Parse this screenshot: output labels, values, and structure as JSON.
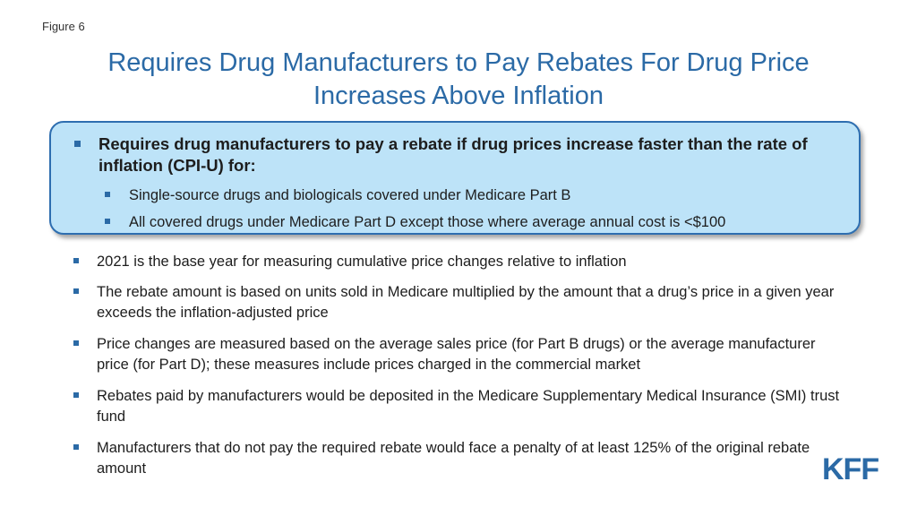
{
  "figure_label": "Figure 6",
  "title_line1": "Requires Drug Manufacturers to Pay Rebates For Drug Price",
  "title_line2": "Increases Above Inflation",
  "highlight": {
    "main": "Requires drug manufacturers to pay a rebate if drug prices increase faster than the rate of inflation (CPI-U) for:",
    "sub": [
      "Single-source drugs and biologicals covered under Medicare Part B",
      "All covered drugs under Medicare Part D except those where average annual cost is <$100"
    ]
  },
  "bullets": [
    "2021 is the base year for measuring cumulative price changes relative to inflation",
    "The rebate amount is based on units sold in Medicare multiplied by the amount that a drug’s price in a given year exceeds the inflation-adjusted price",
    "Price changes are measured based on the average sales price (for Part B drugs) or the average manufacturer price (for Part D); these measures include prices charged in the commercial market",
    "Rebates paid by manufacturers would be deposited in the Medicare Supplementary Medical Insurance (SMI) trust fund",
    "Manufacturers that do not pay the required rebate would face a penalty of at least 125% of the original rebate amount"
  ],
  "logo_text": "KFF",
  "colors": {
    "accent": "#2b6aa6",
    "box_fill": "#bde3f8",
    "box_border": "#2e6eb0"
  }
}
